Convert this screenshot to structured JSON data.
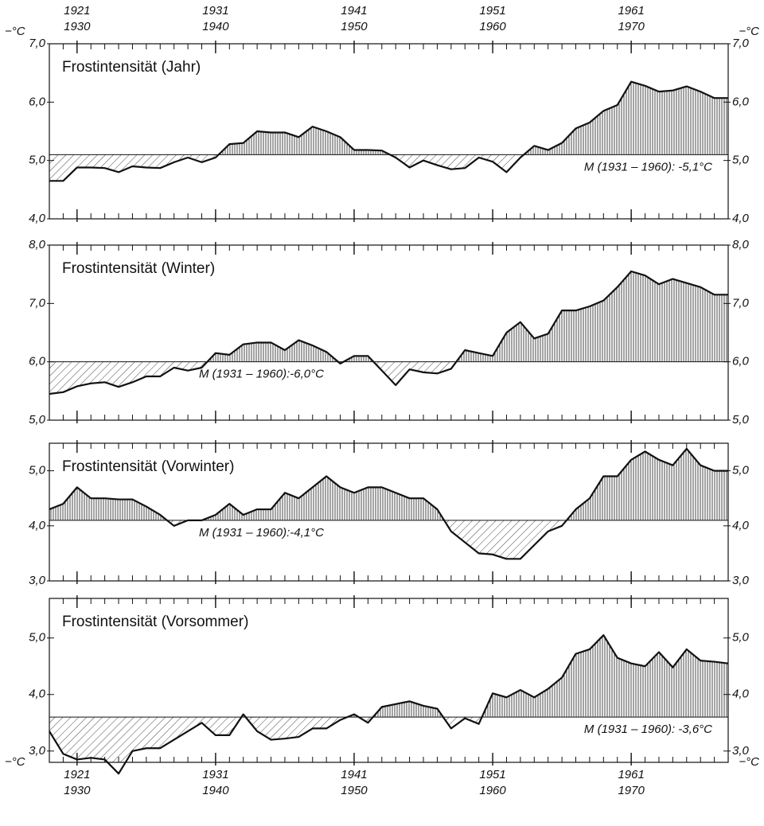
{
  "chart_data": [
    {
      "type": "area",
      "title": "Frostintensität (Jahr)",
      "y_unit": "−°C",
      "x": [
        1928,
        1929,
        1930,
        1931,
        1932,
        1933,
        1934,
        1935,
        1936,
        1937,
        1938,
        1939,
        1940,
        1941,
        1942,
        1943,
        1944,
        1945,
        1946,
        1947,
        1948,
        1949,
        1950,
        1951,
        1952,
        1953,
        1954,
        1955,
        1956,
        1957,
        1958,
        1959,
        1960,
        1961,
        1962,
        1963,
        1964,
        1965,
        1966,
        1967,
        1968,
        1969,
        1970,
        1971,
        1972,
        1973,
        1974,
        1975,
        1976,
        1977
      ],
      "values": [
        4.65,
        4.65,
        4.88,
        4.88,
        4.87,
        4.8,
        4.9,
        4.88,
        4.87,
        4.97,
        5.05,
        4.97,
        5.05,
        5.28,
        5.3,
        5.5,
        5.48,
        5.48,
        5.4,
        5.58,
        5.5,
        5.4,
        5.18,
        5.18,
        5.17,
        5.05,
        4.88,
        5.0,
        4.92,
        4.85,
        4.87,
        5.05,
        4.98,
        4.8,
        5.05,
        5.25,
        5.18,
        5.3,
        5.55,
        5.65,
        5.85,
        5.95,
        6.35,
        6.28,
        6.18,
        6.2,
        6.27,
        6.18,
        6.07,
        6.07
      ],
      "mean": 5.1,
      "mean_label": "M (1931 – 1960): -5,1°C",
      "xlim": [
        1928,
        1977
      ],
      "xticks": [
        {
          "value": 1930,
          "label": [
            "1921",
            "1930"
          ]
        },
        {
          "value": 1940,
          "label": [
            "1931",
            "1940"
          ]
        },
        {
          "value": 1950,
          "label": [
            "1941",
            "1950"
          ]
        },
        {
          "value": 1960,
          "label": [
            "1951",
            "1960"
          ]
        },
        {
          "value": 1970,
          "label": [
            "1961",
            "1970"
          ]
        }
      ],
      "ylim": [
        4,
        7
      ],
      "yticks": [
        {
          "value": 4,
          "label": "4,0"
        },
        {
          "value": 5,
          "label": "5,0"
        },
        {
          "value": 6,
          "label": "6,0"
        },
        {
          "value": 7,
          "label": "7,0"
        }
      ]
    },
    {
      "type": "area",
      "title": "Frostintensität (Winter)",
      "x": [
        1928,
        1929,
        1930,
        1931,
        1932,
        1933,
        1934,
        1935,
        1936,
        1937,
        1938,
        1939,
        1940,
        1941,
        1942,
        1943,
        1944,
        1945,
        1946,
        1947,
        1948,
        1949,
        1950,
        1951,
        1952,
        1953,
        1954,
        1955,
        1956,
        1957,
        1958,
        1959,
        1960,
        1961,
        1962,
        1963,
        1964,
        1965,
        1966,
        1967,
        1968,
        1969,
        1970,
        1971,
        1972,
        1973,
        1974,
        1975,
        1976,
        1977
      ],
      "values": [
        5.45,
        5.48,
        5.58,
        5.63,
        5.65,
        5.57,
        5.65,
        5.75,
        5.75,
        5.9,
        5.85,
        5.9,
        6.15,
        6.12,
        6.3,
        6.33,
        6.33,
        6.2,
        6.37,
        6.28,
        6.17,
        5.97,
        6.1,
        6.1,
        5.85,
        5.6,
        5.87,
        5.82,
        5.8,
        5.88,
        6.2,
        6.15,
        6.1,
        6.5,
        6.68,
        6.4,
        6.48,
        6.88,
        6.88,
        6.95,
        7.05,
        7.28,
        7.55,
        7.48,
        7.33,
        7.42,
        7.35,
        7.28,
        7.15,
        7.15
      ],
      "mean": 6.0,
      "mean_label": "M (1931 – 1960):-6,0°C",
      "xlim": [
        1928,
        1977
      ],
      "ylim": [
        5,
        8
      ],
      "yticks": [
        {
          "value": 5,
          "label": "5,0"
        },
        {
          "value": 6,
          "label": "6,0"
        },
        {
          "value": 7,
          "label": "7,0"
        },
        {
          "value": 8,
          "label": "8,0"
        }
      ]
    },
    {
      "type": "area",
      "title": "Frostintensität (Vorwinter)",
      "x": [
        1928,
        1929,
        1930,
        1931,
        1932,
        1933,
        1934,
        1935,
        1936,
        1937,
        1938,
        1939,
        1940,
        1941,
        1942,
        1943,
        1944,
        1945,
        1946,
        1947,
        1948,
        1949,
        1950,
        1951,
        1952,
        1953,
        1954,
        1955,
        1956,
        1957,
        1958,
        1959,
        1960,
        1961,
        1962,
        1963,
        1964,
        1965,
        1966,
        1967,
        1968,
        1969,
        1970,
        1971,
        1972,
        1973,
        1974,
        1975,
        1976,
        1977
      ],
      "values": [
        4.3,
        4.4,
        4.7,
        4.5,
        4.5,
        4.48,
        4.48,
        4.35,
        4.2,
        4.0,
        4.1,
        4.1,
        4.2,
        4.4,
        4.2,
        4.3,
        4.3,
        4.6,
        4.5,
        4.7,
        4.9,
        4.7,
        4.6,
        4.7,
        4.7,
        4.6,
        4.5,
        4.5,
        4.3,
        3.9,
        3.7,
        3.5,
        3.48,
        3.4,
        3.4,
        3.65,
        3.9,
        4.0,
        4.3,
        4.5,
        4.9,
        4.9,
        5.2,
        5.35,
        5.2,
        5.1,
        5.4,
        5.1,
        5.0,
        5.0
      ],
      "mean": 4.1,
      "mean_label": "M (1931 – 1960):-4,1°C",
      "xlim": [
        1928,
        1977
      ],
      "ylim": [
        3,
        5.5
      ],
      "yticks": [
        {
          "value": 3,
          "label": "3,0"
        },
        {
          "value": 4,
          "label": "4,0"
        },
        {
          "value": 5,
          "label": "5,0"
        }
      ]
    },
    {
      "type": "area",
      "title": "Frostintensität (Vorsommer)",
      "y_unit": "−°C",
      "x": [
        1928,
        1929,
        1930,
        1931,
        1932,
        1933,
        1934,
        1935,
        1936,
        1937,
        1938,
        1939,
        1940,
        1941,
        1942,
        1943,
        1944,
        1945,
        1946,
        1947,
        1948,
        1949,
        1950,
        1951,
        1952,
        1953,
        1954,
        1955,
        1956,
        1957,
        1958,
        1959,
        1960,
        1961,
        1962,
        1963,
        1964,
        1965,
        1966,
        1967,
        1968,
        1969,
        1970,
        1971,
        1972,
        1973,
        1974,
        1975,
        1976,
        1977
      ],
      "values": [
        3.35,
        2.95,
        2.85,
        2.88,
        2.85,
        2.6,
        3.0,
        3.05,
        3.05,
        3.2,
        3.35,
        3.5,
        3.28,
        3.28,
        3.65,
        3.35,
        3.2,
        3.22,
        3.25,
        3.4,
        3.4,
        3.55,
        3.65,
        3.5,
        3.78,
        3.83,
        3.88,
        3.8,
        3.75,
        3.4,
        3.58,
        3.48,
        4.02,
        3.95,
        4.08,
        3.95,
        4.1,
        4.3,
        4.72,
        4.8,
        5.05,
        4.65,
        4.55,
        4.5,
        4.75,
        4.48,
        4.8,
        4.6,
        4.58,
        4.55
      ],
      "mean": 3.6,
      "mean_label": "M (1931 – 1960): -3,6°C",
      "xlim": [
        1928,
        1977
      ],
      "xticks": [
        {
          "value": 1930,
          "label": [
            "1921",
            "1930"
          ]
        },
        {
          "value": 1940,
          "label": [
            "1931",
            "1940"
          ]
        },
        {
          "value": 1950,
          "label": [
            "1941",
            "1950"
          ]
        },
        {
          "value": 1960,
          "label": [
            "1951",
            "1960"
          ]
        },
        {
          "value": 1970,
          "label": [
            "1961",
            "1970"
          ]
        }
      ],
      "ylim": [
        2.8,
        5.7
      ],
      "yticks": [
        {
          "value": 3,
          "label": "3,0"
        },
        {
          "value": 4,
          "label": "4,0"
        },
        {
          "value": 5,
          "label": "5,0"
        }
      ]
    }
  ]
}
